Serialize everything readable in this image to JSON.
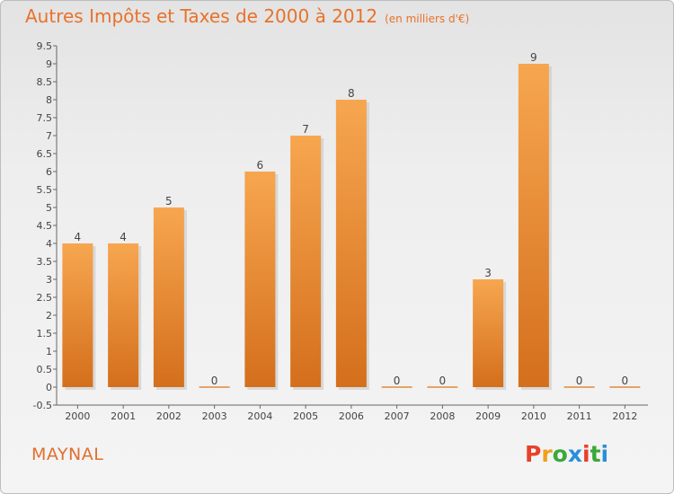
{
  "chart_data": {
    "type": "bar",
    "title": "Autres Impôts et Taxes de 2000 à 2012",
    "subtitle": "(en milliers d'€)",
    "categories": [
      "2000",
      "2001",
      "2002",
      "2003",
      "2004",
      "2005",
      "2006",
      "2007",
      "2008",
      "2009",
      "2010",
      "2011",
      "2012"
    ],
    "values": [
      4,
      4,
      5,
      0,
      6,
      7,
      8,
      0,
      0,
      3,
      9,
      0,
      0
    ],
    "value_labels": [
      "4",
      "4",
      "5",
      "0",
      "6",
      "7",
      "8",
      "0",
      "0",
      "3",
      "9",
      "0",
      "0"
    ],
    "ylim": [
      -0.5,
      9.5
    ],
    "yticks": [
      "-0.5",
      "0",
      "0.5",
      "1",
      "1.5",
      "2",
      "2.5",
      "3",
      "3.5",
      "4",
      "4.5",
      "5",
      "5.5",
      "6",
      "6.5",
      "7",
      "7.5",
      "8",
      "8.5",
      "9",
      "9.5"
    ],
    "xlabel": "",
    "ylabel": "",
    "grid": false,
    "bar_color": "#f39a45"
  },
  "footer": {
    "town": "MAYNAL",
    "brand_letters": [
      "P",
      "r",
      "o",
      "x",
      "i",
      "t",
      "i"
    ],
    "brand_colors": [
      "#e8402a",
      "#f0a020",
      "#3aa83a",
      "#2a8fd8",
      "#e8402a",
      "#3aa83a",
      "#2a8fd8"
    ]
  }
}
